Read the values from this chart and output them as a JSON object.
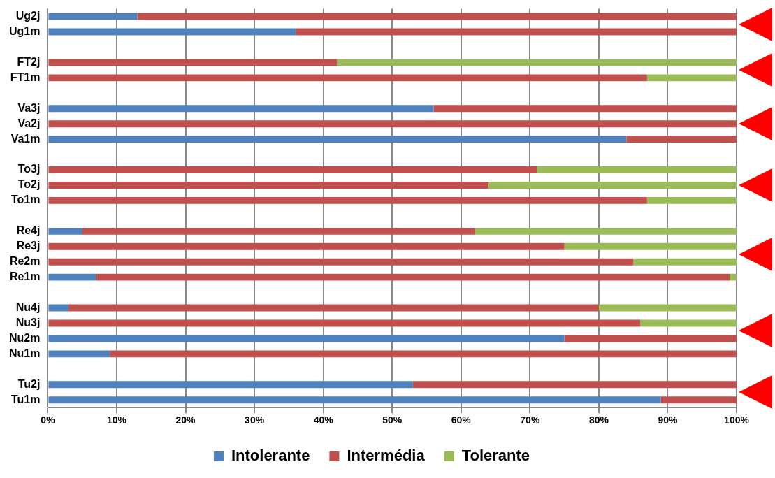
{
  "chart_data": {
    "type": "bar",
    "orientation": "horizontal",
    "stacked": true,
    "categories": [
      "Ug2j",
      "Ug1m",
      null,
      "FT2j",
      "FT1m",
      null,
      "Va3j",
      "Va2j",
      "Va1m",
      null,
      "To3j",
      "To2j",
      "To1m",
      null,
      "Re4j",
      "Re3j",
      "Re2m",
      "Re1m",
      null,
      "Nu4j",
      "Nu3j",
      "Nu2m",
      "Nu1m",
      null,
      "Tu2j",
      "Tu1m"
    ],
    "series": [
      {
        "name": "Intolerante",
        "color": "#4f81bd",
        "values": [
          13,
          36,
          null,
          0,
          0,
          null,
          56,
          0,
          84,
          null,
          0,
          0,
          0,
          null,
          5,
          0,
          0,
          7,
          null,
          3,
          0,
          75,
          9,
          null,
          53,
          89
        ]
      },
      {
        "name": "Intermédia",
        "color": "#c0504d",
        "values": [
          87,
          64,
          null,
          42,
          87,
          null,
          44,
          100,
          16,
          null,
          71,
          64,
          87,
          null,
          57,
          75,
          85,
          92,
          null,
          77,
          86,
          25,
          91,
          null,
          47,
          11
        ]
      },
      {
        "name": "Tolerante",
        "color": "#9bbb59",
        "values": [
          0,
          0,
          null,
          58,
          13,
          null,
          0,
          0,
          0,
          null,
          29,
          36,
          13,
          null,
          38,
          25,
          15,
          1,
          null,
          20,
          14,
          0,
          0,
          null,
          0,
          0
        ]
      }
    ],
    "xlim": [
      0,
      100
    ],
    "xticks": [
      {
        "value": 0,
        "label": "0%"
      },
      {
        "value": 10,
        "label": "10%"
      },
      {
        "value": 20,
        "label": "20%"
      },
      {
        "value": 30,
        "label": "30%"
      },
      {
        "value": 40,
        "label": "40%"
      },
      {
        "value": 50,
        "label": "50%"
      },
      {
        "value": 60,
        "label": "60%"
      },
      {
        "value": 70,
        "label": "70%"
      },
      {
        "value": 80,
        "label": "80%"
      },
      {
        "value": 90,
        "label": "90%"
      },
      {
        "value": 100,
        "label": "100%"
      }
    ],
    "grid": "x",
    "legend": "bottom"
  }
}
